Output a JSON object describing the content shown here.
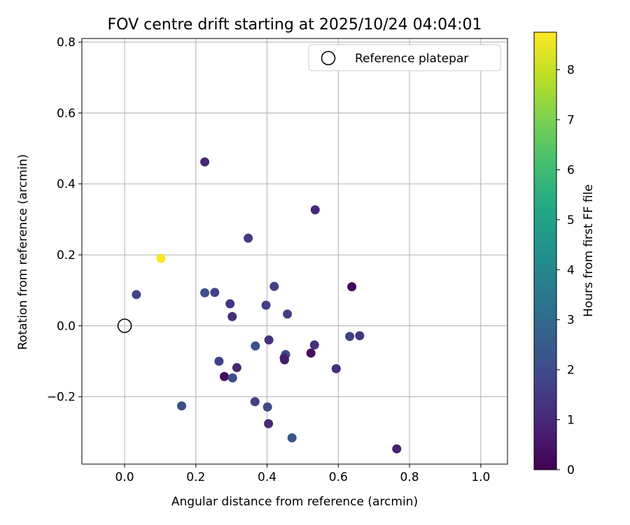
{
  "chart_data": {
    "type": "scatter",
    "title": "FOV centre drift starting at 2025/10/24 04:04:01",
    "xlabel": "Angular distance from reference (arcmin)",
    "ylabel": "Rotation from reference (arcmin)",
    "xlim": [
      -0.12,
      1.075
    ],
    "ylim": [
      -0.39,
      0.81
    ],
    "xticks": [
      0.0,
      0.2,
      0.4,
      0.6,
      0.8,
      1.0
    ],
    "xtick_labels": [
      "0.0",
      "0.2",
      "0.4",
      "0.6",
      "0.8",
      "1.0"
    ],
    "yticks": [
      -0.2,
      0.0,
      0.2,
      0.4,
      0.6,
      0.8
    ],
    "ytick_labels": [
      "−0.2",
      "0.0",
      "0.2",
      "0.4",
      "0.6",
      "0.8"
    ],
    "grid": true,
    "legend": {
      "position": "top-right",
      "entries": [
        {
          "label": "Reference platepar",
          "marker": "open-circle"
        }
      ]
    },
    "reference_point": {
      "x": 0.0,
      "y": 0.0
    },
    "colorbar": {
      "label": "Hours from first FF file",
      "range": [
        0,
        8.75
      ],
      "ticks": [
        0,
        1,
        2,
        3,
        4,
        5,
        6,
        7,
        8
      ],
      "tick_labels": [
        "0",
        "1",
        "2",
        "3",
        "4",
        "5",
        "6",
        "7",
        "8"
      ],
      "colormap": "viridis"
    },
    "points": [
      {
        "x": 0.225,
        "y": 0.462,
        "hours": 1.0
      },
      {
        "x": 0.535,
        "y": 0.327,
        "hours": 1.0
      },
      {
        "x": 0.347,
        "y": 0.247,
        "hours": 1.5
      },
      {
        "x": 0.102,
        "y": 0.19,
        "hours": 8.7
      },
      {
        "x": 0.033,
        "y": 0.088,
        "hours": 1.8
      },
      {
        "x": 0.225,
        "y": 0.093,
        "hours": 2.2
      },
      {
        "x": 0.253,
        "y": 0.094,
        "hours": 1.7
      },
      {
        "x": 0.296,
        "y": 0.062,
        "hours": 1.3
      },
      {
        "x": 0.302,
        "y": 0.026,
        "hours": 1.2
      },
      {
        "x": 0.397,
        "y": 0.058,
        "hours": 1.6
      },
      {
        "x": 0.42,
        "y": 0.111,
        "hours": 1.6
      },
      {
        "x": 0.457,
        "y": 0.033,
        "hours": 1.6
      },
      {
        "x": 0.638,
        "y": 0.11,
        "hours": 0.1
      },
      {
        "x": 0.405,
        "y": -0.04,
        "hours": 1.2
      },
      {
        "x": 0.367,
        "y": -0.057,
        "hours": 2.2
      },
      {
        "x": 0.533,
        "y": -0.054,
        "hours": 1.2
      },
      {
        "x": 0.632,
        "y": -0.03,
        "hours": 1.7
      },
      {
        "x": 0.66,
        "y": -0.028,
        "hours": 1.4
      },
      {
        "x": 0.265,
        "y": -0.1,
        "hours": 1.7
      },
      {
        "x": 0.315,
        "y": -0.118,
        "hours": 0.9
      },
      {
        "x": 0.452,
        "y": -0.081,
        "hours": 2.0
      },
      {
        "x": 0.448,
        "y": -0.09,
        "hours": 1.1
      },
      {
        "x": 0.449,
        "y": -0.096,
        "hours": 0.7
      },
      {
        "x": 0.523,
        "y": -0.077,
        "hours": 0.3
      },
      {
        "x": 0.594,
        "y": -0.121,
        "hours": 1.1
      },
      {
        "x": 0.28,
        "y": -0.143,
        "hours": 0.2
      },
      {
        "x": 0.303,
        "y": -0.147,
        "hours": 2.1
      },
      {
        "x": 0.16,
        "y": -0.226,
        "hours": 2.1
      },
      {
        "x": 0.366,
        "y": -0.214,
        "hours": 1.6
      },
      {
        "x": 0.401,
        "y": -0.229,
        "hours": 1.9
      },
      {
        "x": 0.404,
        "y": -0.276,
        "hours": 1.0
      },
      {
        "x": 0.47,
        "y": -0.316,
        "hours": 2.3
      },
      {
        "x": 0.764,
        "y": -0.347,
        "hours": 0.8
      }
    ]
  }
}
